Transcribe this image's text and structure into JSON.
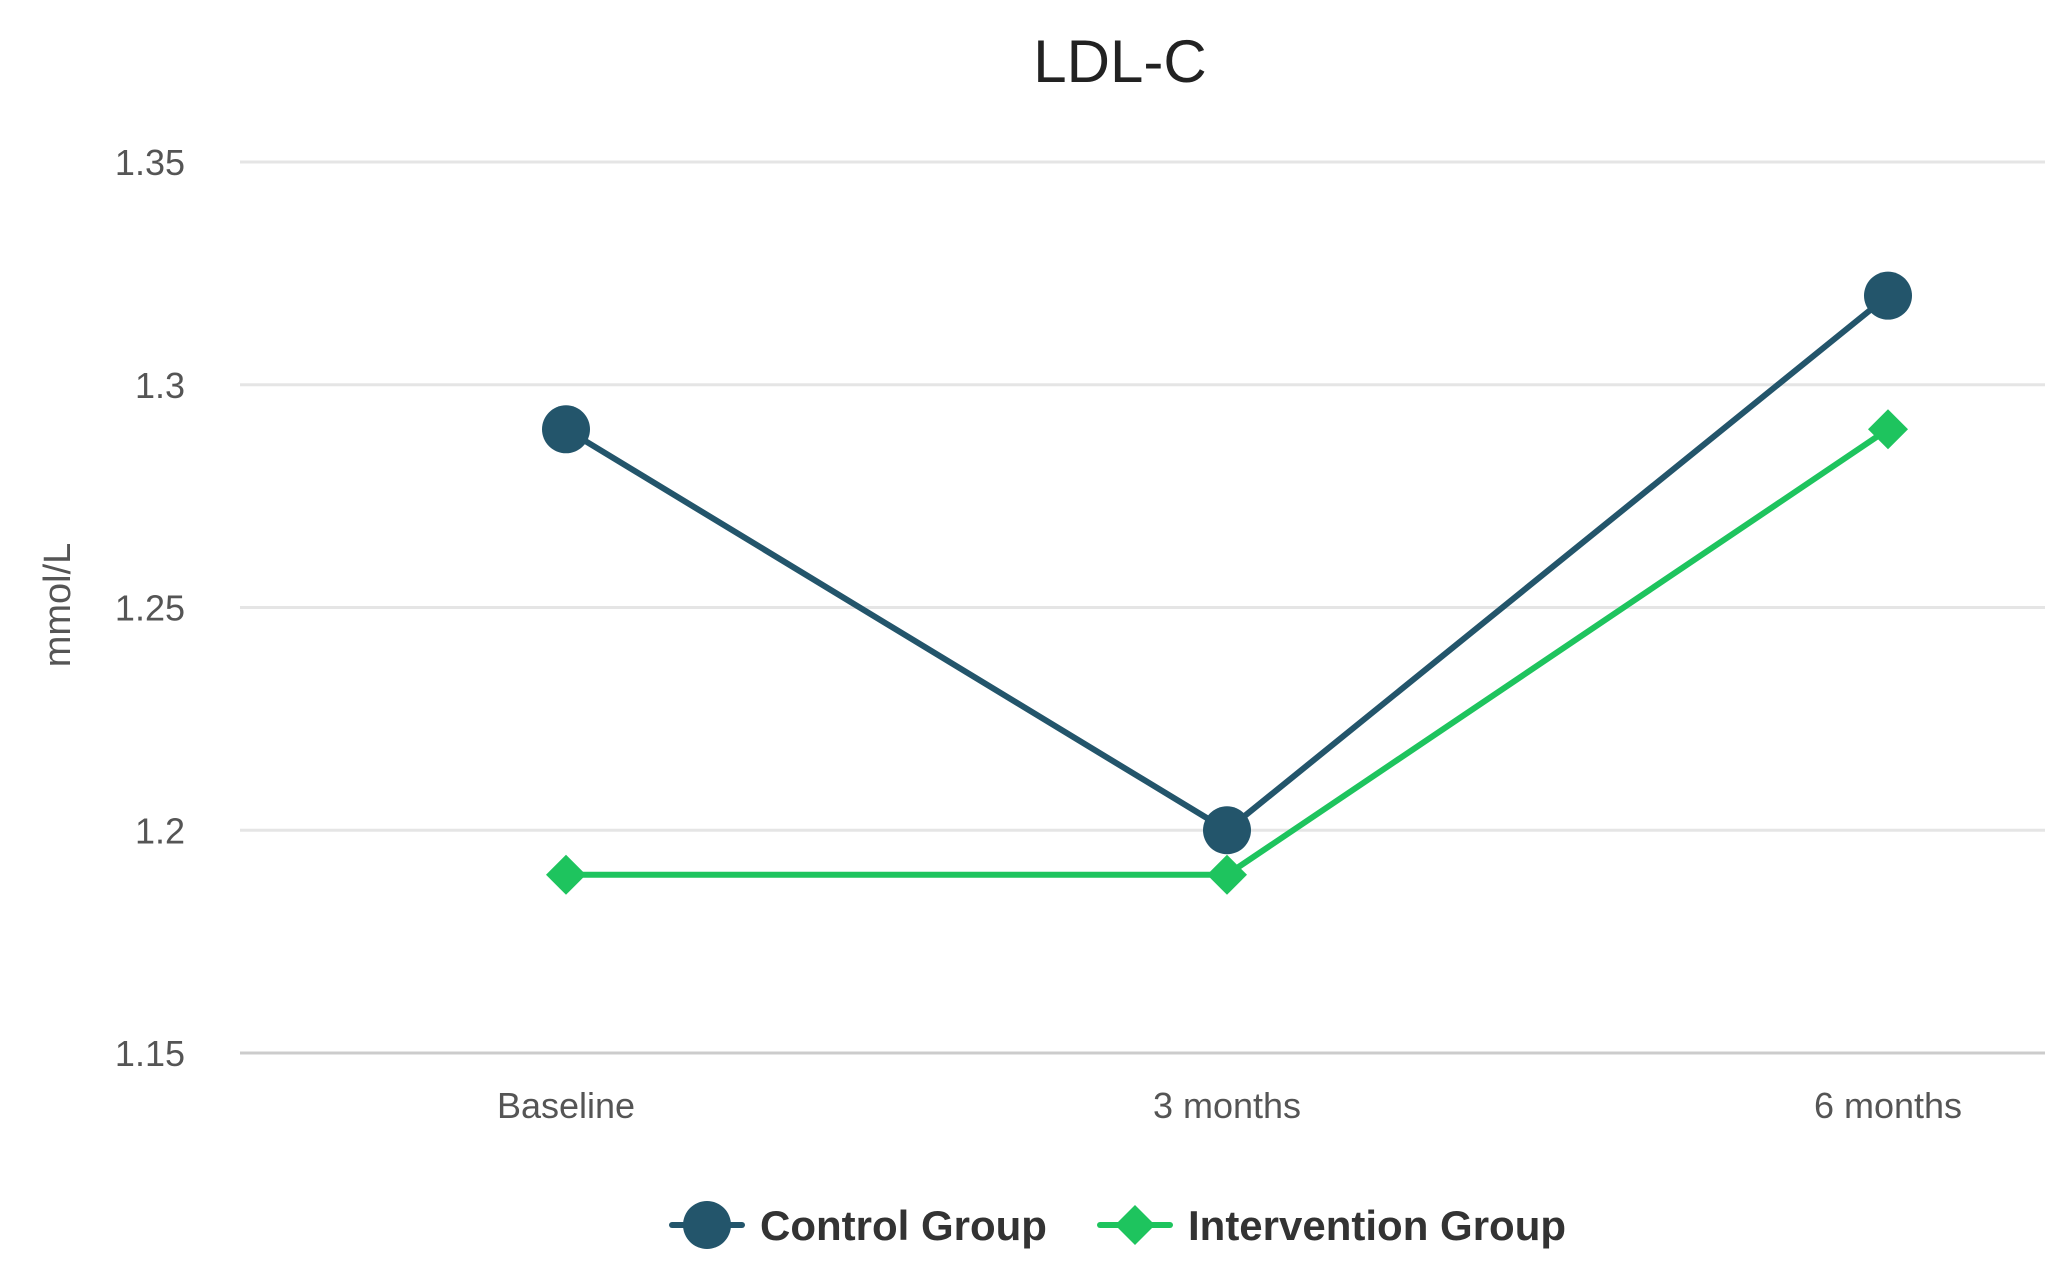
{
  "chart_data": {
    "type": "line",
    "title": "LDL-C",
    "xlabel": "",
    "ylabel": "mmol/L",
    "categories": [
      "Baseline",
      "3 months",
      "6 months"
    ],
    "ylim": [
      1.15,
      1.35
    ],
    "yticks": [
      "1.15",
      "1.2",
      "1.25",
      "1.3",
      "1.35"
    ],
    "ytick_values": [
      1.15,
      1.2,
      1.25,
      1.3,
      1.35
    ],
    "grid": true,
    "legend_position": "bottom",
    "series": [
      {
        "name": "Control Group",
        "values": [
          1.29,
          1.2,
          1.32
        ],
        "color": "#23556b",
        "marker": "circle"
      },
      {
        "name": "Intervention Group",
        "values": [
          1.19,
          1.19,
          1.29
        ],
        "color": "#1ec45e",
        "marker": "diamond"
      }
    ]
  }
}
